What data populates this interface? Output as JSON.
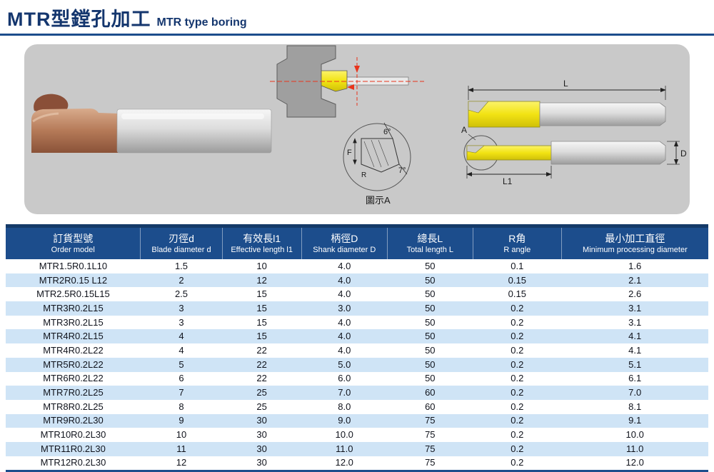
{
  "header": {
    "title_zh": "MTR型鏜孔加工",
    "title_en": "MTR type boring"
  },
  "diagram": {
    "detail_label": "圖示A",
    "angle_top": "6°",
    "angle_bottom": "7°",
    "label_F": "F",
    "label_R": "R",
    "label_L": "L",
    "label_L1": "L1",
    "label_D": "D",
    "label_A": "A"
  },
  "colors": {
    "title_navy": "#14366e",
    "header_bg": "#1c4d8c",
    "row_alt_blue": "#cfe4f6",
    "panel_gray": "#c9c9c9",
    "insert_yellow": "#f2e313",
    "accent_red": "#e8341c"
  },
  "table": {
    "headers": [
      {
        "zh": "訂貨型號",
        "en": "Order model"
      },
      {
        "zh": "刃徑d",
        "en": "Blade diameter d"
      },
      {
        "zh": "有效長l1",
        "en": "Effective length l1"
      },
      {
        "zh": "柄徑D",
        "en": "Shank diameter D"
      },
      {
        "zh": "總長L",
        "en": "Total length L"
      },
      {
        "zh": "R角",
        "en": "R angle"
      },
      {
        "zh": "最小加工直徑",
        "en": "Minimum processing diameter"
      }
    ],
    "rows": [
      [
        "MTR1.5R0.1L10",
        "1.5",
        "10",
        "4.0",
        "50",
        "0.1",
        "1.6"
      ],
      [
        "MTR2R0.15 L12",
        "2",
        "12",
        "4.0",
        "50",
        "0.15",
        "2.1"
      ],
      [
        "MTR2.5R0.15L15",
        "2.5",
        "15",
        "4.0",
        "50",
        "0.15",
        "2.6"
      ],
      [
        "MTR3R0.2L15",
        "3",
        "15",
        "3.0",
        "50",
        "0.2",
        "3.1"
      ],
      [
        "MTR3R0.2L15",
        "3",
        "15",
        "4.0",
        "50",
        "0.2",
        "3.1"
      ],
      [
        "MTR4R0.2L15",
        "4",
        "15",
        "4.0",
        "50",
        "0.2",
        "4.1"
      ],
      [
        "MTR4R0.2L22",
        "4",
        "22",
        "4.0",
        "50",
        "0.2",
        "4.1"
      ],
      [
        "MTR5R0.2L22",
        "5",
        "22",
        "5.0",
        "50",
        "0.2",
        "5.1"
      ],
      [
        "MTR6R0.2L22",
        "6",
        "22",
        "6.0",
        "50",
        "0.2",
        "6.1"
      ],
      [
        "MTR7R0.2L25",
        "7",
        "25",
        "7.0",
        "60",
        "0.2",
        "7.0"
      ],
      [
        "MTR8R0.2L25",
        "8",
        "25",
        "8.0",
        "60",
        "0.2",
        "8.1"
      ],
      [
        "MTR9R0.2L30",
        "9",
        "30",
        "9.0",
        "75",
        "0.2",
        "9.1"
      ],
      [
        "MTR10R0.2L30",
        "10",
        "30",
        "10.0",
        "75",
        "0.2",
        "10.0"
      ],
      [
        "MTR11R0.2L30",
        "11",
        "30",
        "11.0",
        "75",
        "0.2",
        "11.0"
      ],
      [
        "MTR12R0.2L30",
        "12",
        "30",
        "12.0",
        "75",
        "0.2",
        "12.0"
      ]
    ]
  }
}
